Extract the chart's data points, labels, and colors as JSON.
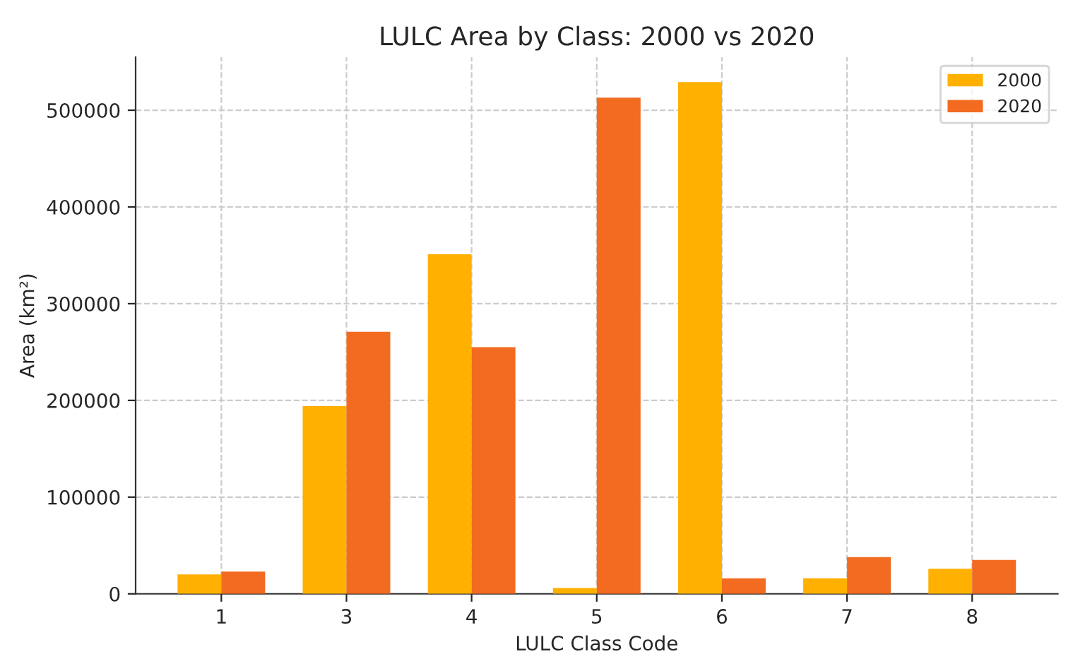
{
  "chart_data": {
    "type": "bar",
    "title": "LULC Area by Class: 2000 vs 2020",
    "xlabel": "LULC Class Code",
    "ylabel": "Area (km²)",
    "categories": [
      "1",
      "3",
      "4",
      "5",
      "6",
      "7",
      "8"
    ],
    "series": [
      {
        "name": "2000",
        "color": "#ffb000",
        "values": [
          20000,
          194000,
          351000,
          6000,
          529000,
          16000,
          26000
        ]
      },
      {
        "name": "2020",
        "color": "#f26b21",
        "values": [
          23000,
          271000,
          255000,
          513000,
          16000,
          38000,
          35000
        ]
      }
    ],
    "ylim": [
      0,
      555000
    ],
    "yticks": [
      0,
      100000,
      200000,
      300000,
      400000,
      500000
    ],
    "grid": true,
    "legend": "top right"
  }
}
